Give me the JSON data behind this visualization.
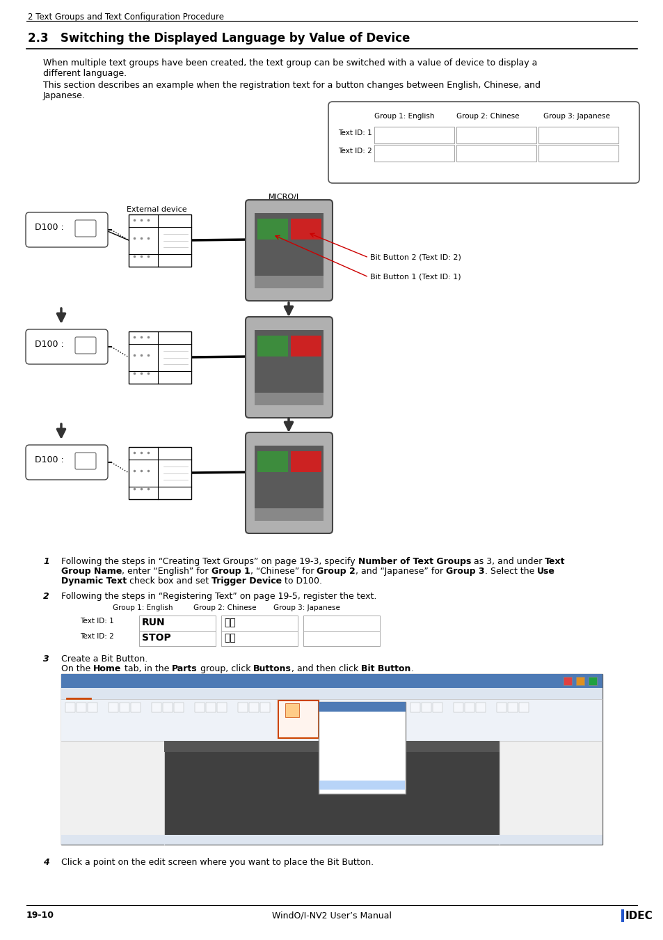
{
  "page_header": "2 Text Groups and Text Configuration Procedure",
  "section_title": "2.3   Switching the Displayed Language by Value of Device",
  "para1": "When multiple text groups have been created, the text group can be switched with a value of device to display a\ndifferent language.",
  "para2": "This section describes an example when the registration text for a button changes between English, Chinese, and\nJapanese.",
  "btn_labels_1": [
    "RUN",
    "STOP"
  ],
  "btn_labels_2": [
    "运行",
    "停止"
  ],
  "bit_btn2_label": "Bit Button 2 (Text ID: 2)",
  "bit_btn1_label": "Bit Button 1 (Text ID: 1)",
  "step2_text": "Following the steps in “Registering Text” on page 19-5, register the text.",
  "step3_text1": "Create a Bit Button.",
  "step4_text": "Click a point on the edit screen where you want to place the Bit Button.",
  "footer_left": "19-10",
  "footer_center": "WindO/I-NV2 User’s Manual",
  "footer_right": "IDEC",
  "bg_color": "#ffffff",
  "green_color": "#3d8c3d",
  "red_color": "#cc2222",
  "micro_bg": "#aaaaaa",
  "micro_screen": "#666666",
  "micro_bar": "#888888",
  "device_border": "#000000",
  "d100_border": "#444444"
}
